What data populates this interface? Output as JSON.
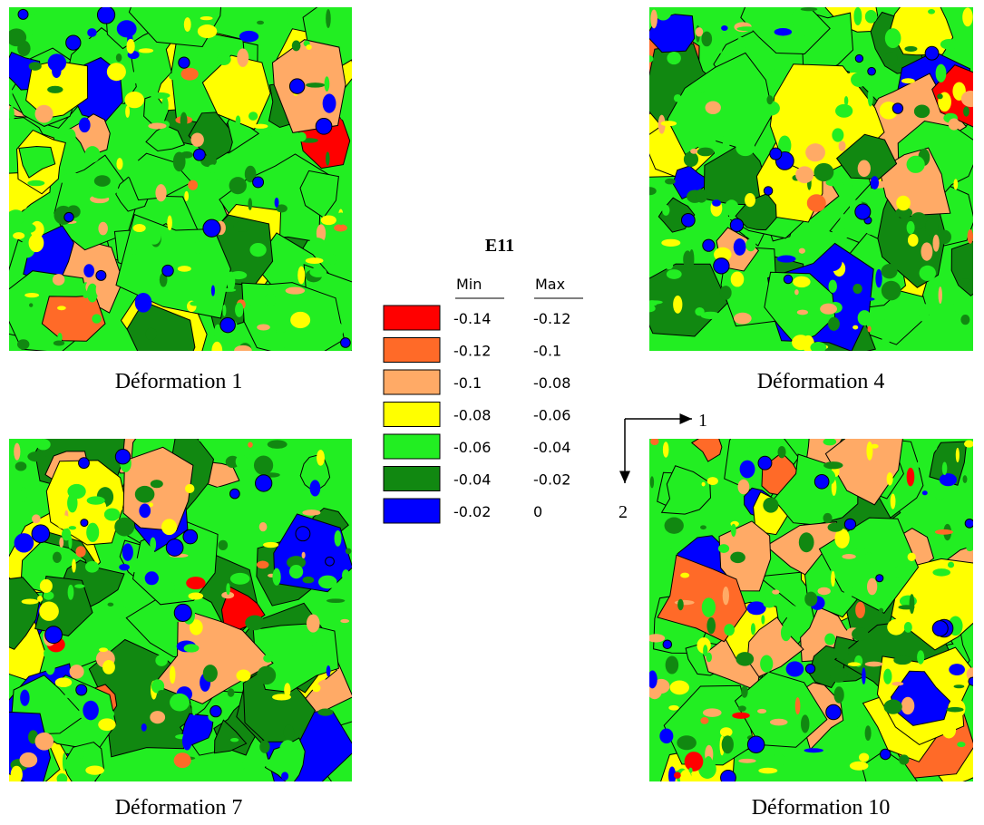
{
  "legend": {
    "title": "E11",
    "headers": [
      "Min",
      "Max"
    ],
    "rows": [
      {
        "color": "#ff0000",
        "min": "-0.14",
        "max": "-0.12"
      },
      {
        "color": "#ff6a28",
        "min": "-0.12",
        "max": "-0.1"
      },
      {
        "color": "#ffaa66",
        "min": "-0.1",
        "max": "-0.08"
      },
      {
        "color": "#ffff00",
        "min": "-0.08",
        "max": "-0.06"
      },
      {
        "color": "#22ee22",
        "min": "-0.06",
        "max": "-0.04"
      },
      {
        "color": "#118811",
        "min": "-0.04",
        "max": "-0.02"
      },
      {
        "color": "#0000ff",
        "min": "-0.02",
        "max": "0"
      }
    ]
  },
  "maps": [
    {
      "caption": "Déformation 1"
    },
    {
      "caption": "Déformation 4"
    },
    {
      "caption": "Déformation 7"
    },
    {
      "caption": "Déformation 10"
    }
  ],
  "axes": {
    "x_label": "1",
    "y_label": "2"
  }
}
